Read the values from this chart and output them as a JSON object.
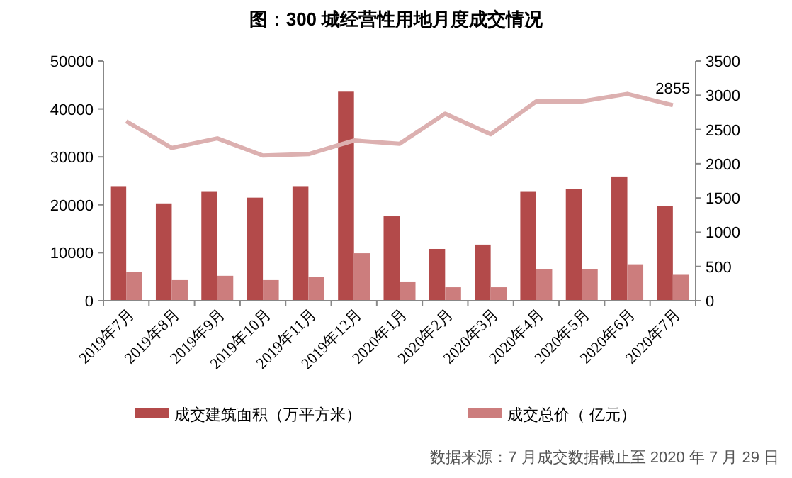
{
  "chart_data": {
    "type": "bar",
    "title": "图：300 城经营性用地月度成交情况",
    "categories": [
      "2019年7月",
      "2019年8月",
      "2019年9月",
      "2019年10月",
      "2019年11月",
      "2019年12月",
      "2020年1月",
      "2020年2月",
      "2020年3月",
      "2020年4月",
      "2020年5月",
      "2020年6月",
      "2020年7月"
    ],
    "series": [
      {
        "name": "成交建筑面积（万平方米）",
        "color": "#b34a4a",
        "values": [
          23900,
          20300,
          22700,
          21500,
          23900,
          43600,
          17600,
          10800,
          11700,
          22700,
          23300,
          25900,
          19700
        ]
      },
      {
        "name": "成交总价（ 亿元）",
        "color": "#cc7d7d",
        "values": [
          6000,
          4300,
          5200,
          4300,
          5000,
          9900,
          4000,
          2800,
          2800,
          6600,
          6600,
          7600,
          5400
        ]
      },
      {
        "type": "line",
        "axis": "y2",
        "color": "#dcb0b0",
        "values": [
          2620,
          2230,
          2370,
          2120,
          2140,
          2340,
          2290,
          2730,
          2430,
          2910,
          2910,
          3020,
          2855
        ],
        "value_labels": [
          null,
          null,
          null,
          null,
          null,
          null,
          null,
          null,
          null,
          null,
          null,
          null,
          "2855"
        ]
      }
    ],
    "ylim": [
      0,
      50000
    ],
    "yticks": [
      0,
      10000,
      20000,
      30000,
      40000,
      50000
    ],
    "y2lim": [
      0,
      3500
    ],
    "y2ticks": [
      0,
      500,
      1000,
      1500,
      2000,
      2500,
      3000,
      3500
    ],
    "grid": false,
    "legend": "bottom",
    "annotations": [
      "数据来源：7 月成交数据截止至 2020 年 7 月 29 日"
    ]
  }
}
